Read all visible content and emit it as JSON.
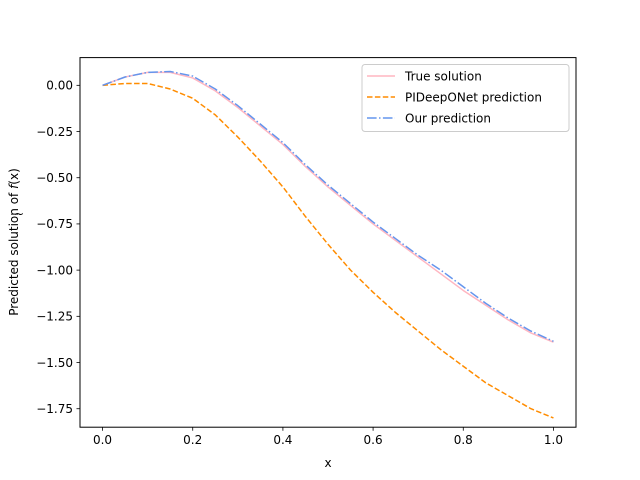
{
  "chart_data": {
    "type": "line",
    "title": "",
    "xlabel": "x",
    "ylabel_prefix": "Predicted solution of ",
    "ylabel_symbol": "f",
    "ylabel_suffix": "(x)",
    "xlim": [
      -0.05,
      1.05
    ],
    "ylim": [
      -1.85,
      0.15
    ],
    "xticks": [
      0.0,
      0.2,
      0.4,
      0.6,
      0.8,
      1.0
    ],
    "xtick_labels": [
      "0.0",
      "0.2",
      "0.4",
      "0.6",
      "0.8",
      "1.0"
    ],
    "yticks": [
      0.0,
      -0.25,
      -0.5,
      -0.75,
      -1.0,
      -1.25,
      -1.5,
      -1.75
    ],
    "ytick_labels": [
      "0.00",
      "−0.25",
      "−0.50",
      "−0.75",
      "−1.00",
      "−1.25",
      "−1.50",
      "−1.75"
    ],
    "grid": false,
    "legend_position": "upper right",
    "x": [
      0.0,
      0.05,
      0.1,
      0.15,
      0.2,
      0.25,
      0.3,
      0.35,
      0.4,
      0.45,
      0.5,
      0.55,
      0.6,
      0.65,
      0.7,
      0.75,
      0.8,
      0.85,
      0.9,
      0.95,
      1.0
    ],
    "series": [
      {
        "name": "True solution",
        "color": "#ffb6c1",
        "dash": "solid",
        "values": [
          0.0,
          0.045,
          0.07,
          0.07,
          0.04,
          -0.03,
          -0.12,
          -0.22,
          -0.32,
          -0.44,
          -0.55,
          -0.65,
          -0.75,
          -0.84,
          -0.93,
          -1.02,
          -1.11,
          -1.19,
          -1.27,
          -1.34,
          -1.39
        ]
      },
      {
        "name": "PIDeepONet prediction",
        "color": "#ff8c00",
        "dash": "dashed",
        "values": [
          0.0,
          0.01,
          0.01,
          -0.02,
          -0.07,
          -0.16,
          -0.28,
          -0.41,
          -0.55,
          -0.71,
          -0.86,
          -1.0,
          -1.12,
          -1.23,
          -1.33,
          -1.43,
          -1.52,
          -1.61,
          -1.68,
          -1.75,
          -1.8
        ]
      },
      {
        "name": "Our prediction",
        "color": "#6495ed",
        "dash": "dashdot",
        "values": [
          0.0,
          0.045,
          0.07,
          0.075,
          0.05,
          -0.02,
          -0.11,
          -0.21,
          -0.31,
          -0.43,
          -0.54,
          -0.64,
          -0.74,
          -0.83,
          -0.92,
          -1.0,
          -1.09,
          -1.18,
          -1.26,
          -1.33,
          -1.385
        ]
      }
    ]
  }
}
